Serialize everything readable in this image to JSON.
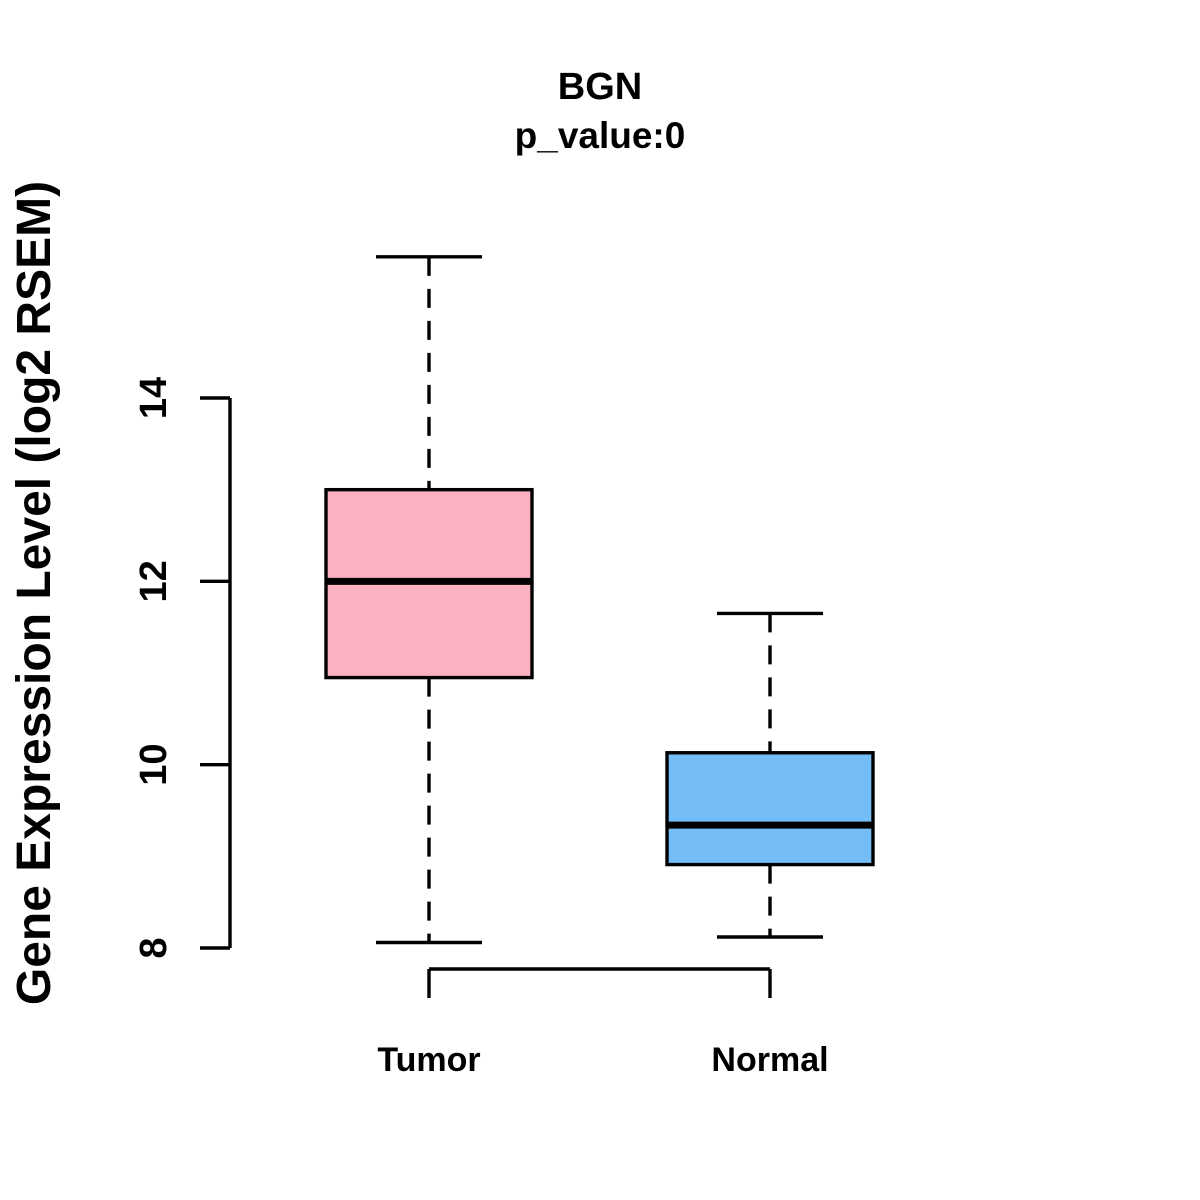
{
  "chart_data": {
    "type": "boxplot",
    "title": "BGN",
    "subtitle": "p_value:0",
    "ylabel": "Gene Expression Level (log2 RSEM)",
    "xlabel": "",
    "categories": [
      "Tumor",
      "Normal"
    ],
    "yticks": [
      8,
      10,
      12,
      14
    ],
    "ylim": [
      7.5,
      15.9
    ],
    "grid": false,
    "legend": "none",
    "series": [
      {
        "name": "Tumor",
        "color": "#FCB1C3",
        "whisker_low": 8.06,
        "q1": 10.95,
        "median": 12.0,
        "q3": 13.0,
        "whisker_high": 15.54,
        "outliers": []
      },
      {
        "name": "Normal",
        "color": "#74BDF7",
        "whisker_low": 8.12,
        "q1": 8.91,
        "median": 9.34,
        "q3": 10.13,
        "whisker_high": 11.65,
        "outliers": []
      }
    ],
    "colors": {
      "stroke": "#000000",
      "background": "#FFFFFF"
    }
  }
}
